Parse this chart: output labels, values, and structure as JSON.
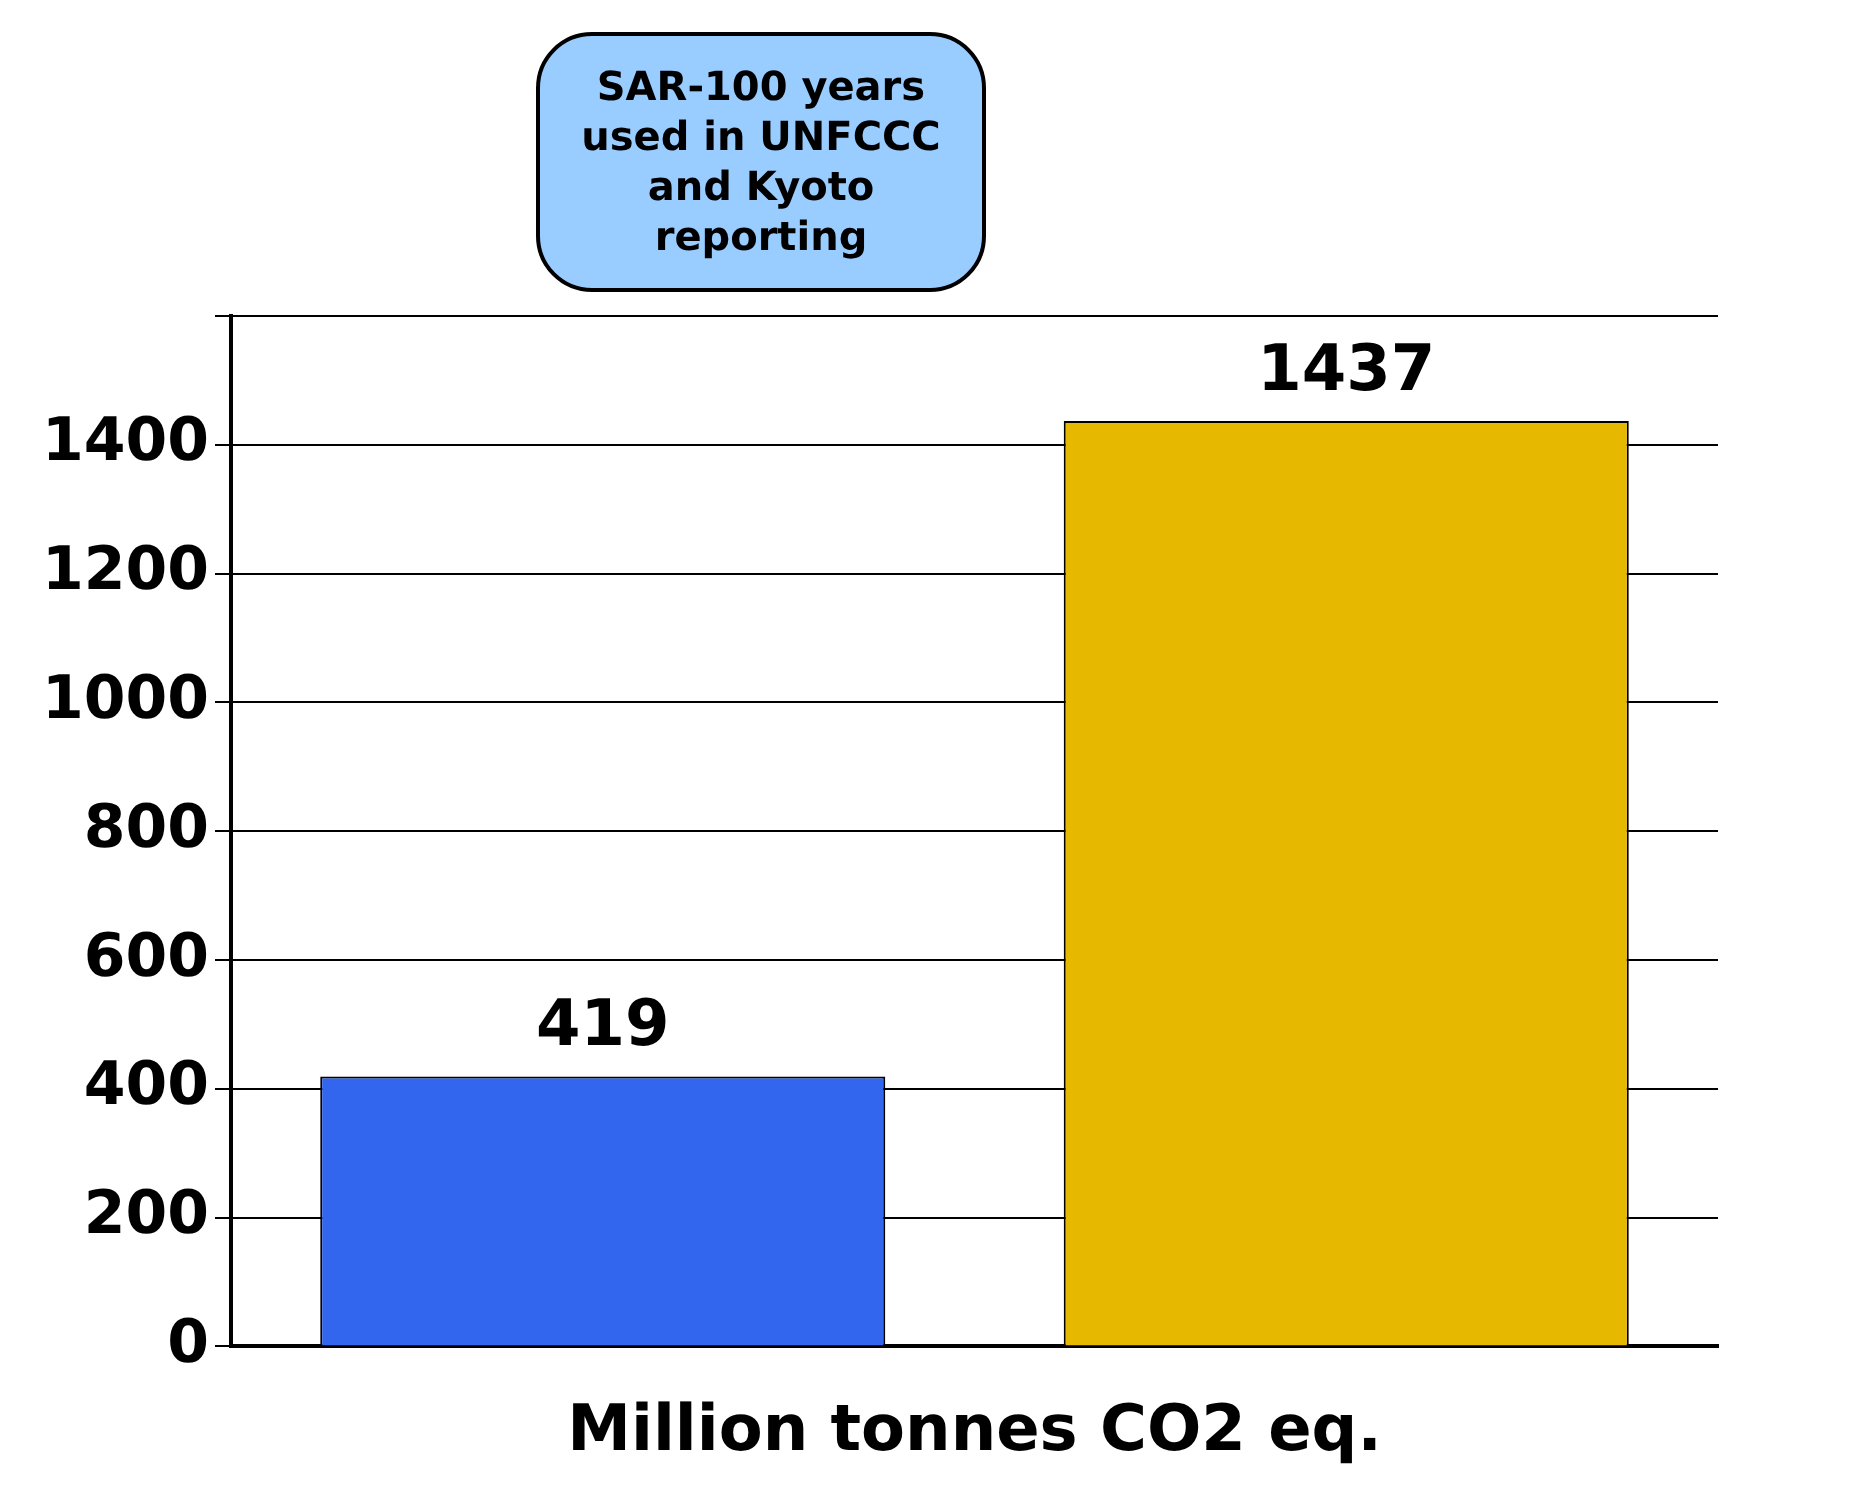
{
  "chart_data": {
    "type": "bar",
    "xlabel": "Million tonnes CO2 eq.",
    "categories": [
      null,
      null
    ],
    "values": [
      419,
      1437
    ],
    "colors": [
      "#3366ee",
      "#e6b800"
    ],
    "data_labels": true,
    "ylim": [
      0,
      1600
    ],
    "yticks": [
      0,
      200,
      400,
      600,
      800,
      1000,
      1200,
      1400,
      {
        "value": 1600,
        "label": null
      }
    ],
    "grid": "y",
    "annotations": [
      "SAR-100 years used in UNFCCC and Kyoto reporting"
    ]
  }
}
